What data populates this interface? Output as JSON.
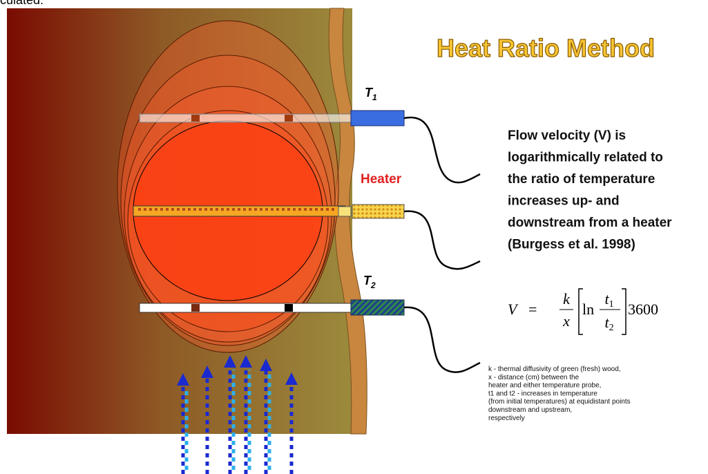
{
  "header": {
    "cut_text": "culated.",
    "title": "Heat Ratio Method"
  },
  "labels": {
    "t1": {
      "base": "T",
      "sub": "1"
    },
    "heater": "Heater",
    "t2": {
      "base": "T",
      "sub": "2"
    }
  },
  "description": [
    "Flow velocity (V) is",
    "logarithmically related to",
    "the ratio of temperature",
    "increases up- and",
    "downstream from a heater",
    "(Burgess et al. 1998)"
  ],
  "equation": {
    "lhs": "V",
    "equals": "=",
    "numerator": "k",
    "denominator": "x",
    "log": "ln",
    "top": {
      "base": "t",
      "sub": "1"
    },
    "bottom": {
      "base": "t",
      "sub": "2"
    },
    "factor": "3600"
  },
  "definitions": [
    "k - thermal diffusivity of green (fresh) wood,",
    "x - distance (cm) between the",
    "heater and either temperature probe,",
    "t1 and t2 - increases in temperature",
    "(from initial temperatures) at equidistant points",
    "downstream and upstream,",
    "respectively"
  ]
}
